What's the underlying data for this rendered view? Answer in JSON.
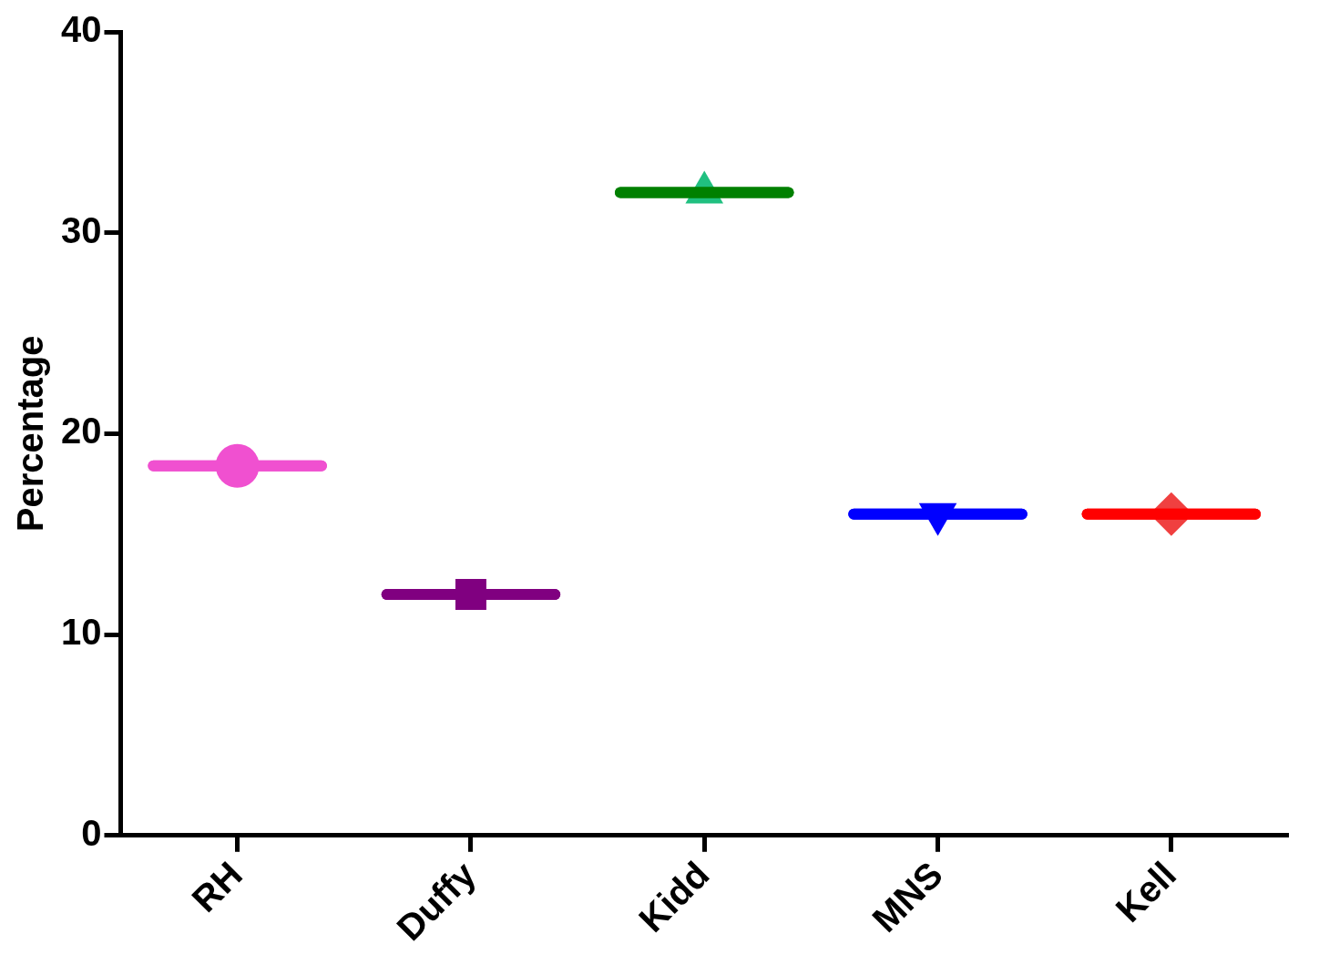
{
  "chart_data": {
    "type": "box",
    "ylabel": "Percentage",
    "categories": [
      "RH",
      "Duffy",
      "Kidd",
      "MNS",
      "Kell"
    ],
    "boxes": [
      {
        "low": 18.4,
        "q1": 18.4,
        "median": 18.4,
        "q3": 18.4,
        "high": 18.4
      },
      {
        "low": 12,
        "q1": 12,
        "median": 12,
        "q3": 12,
        "high": 12
      },
      {
        "low": 32,
        "q1": 32,
        "median": 32,
        "q3": 32,
        "high": 32
      },
      {
        "low": 16,
        "q1": 16,
        "median": 16,
        "q3": 16,
        "high": 16
      },
      {
        "low": 16,
        "q1": 16,
        "median": 16,
        "q3": 16,
        "high": 16
      }
    ],
    "colors": [
      "#f050d0",
      "#800080",
      "#008000",
      "#0000ff",
      "#ff0000"
    ],
    "series": [
      {
        "type": "scatter",
        "color": "#f050d0",
        "marker": "circle",
        "x": [
          "RH"
        ],
        "values": [
          18.4
        ]
      },
      {
        "type": "scatter",
        "color": "#800080",
        "marker": "square",
        "x": [
          "Duffy"
        ],
        "values": [
          12
        ]
      },
      {
        "type": "scatter",
        "color": "#20c080",
        "marker": "triangle",
        "x": [
          "Kidd"
        ],
        "values": [
          32
        ]
      },
      {
        "type": "scatter",
        "color": "#0000ff",
        "marker": "triangle_down",
        "x": [
          "MNS"
        ],
        "values": [
          16
        ]
      },
      {
        "type": "scatter",
        "color": "#f04040",
        "marker": "diamond",
        "x": [
          "Kell"
        ],
        "values": [
          16
        ]
      }
    ],
    "ylim": [
      0,
      40
    ],
    "yticks": [
      0,
      10,
      20,
      30,
      40
    ],
    "grid": false,
    "legend": false
  }
}
